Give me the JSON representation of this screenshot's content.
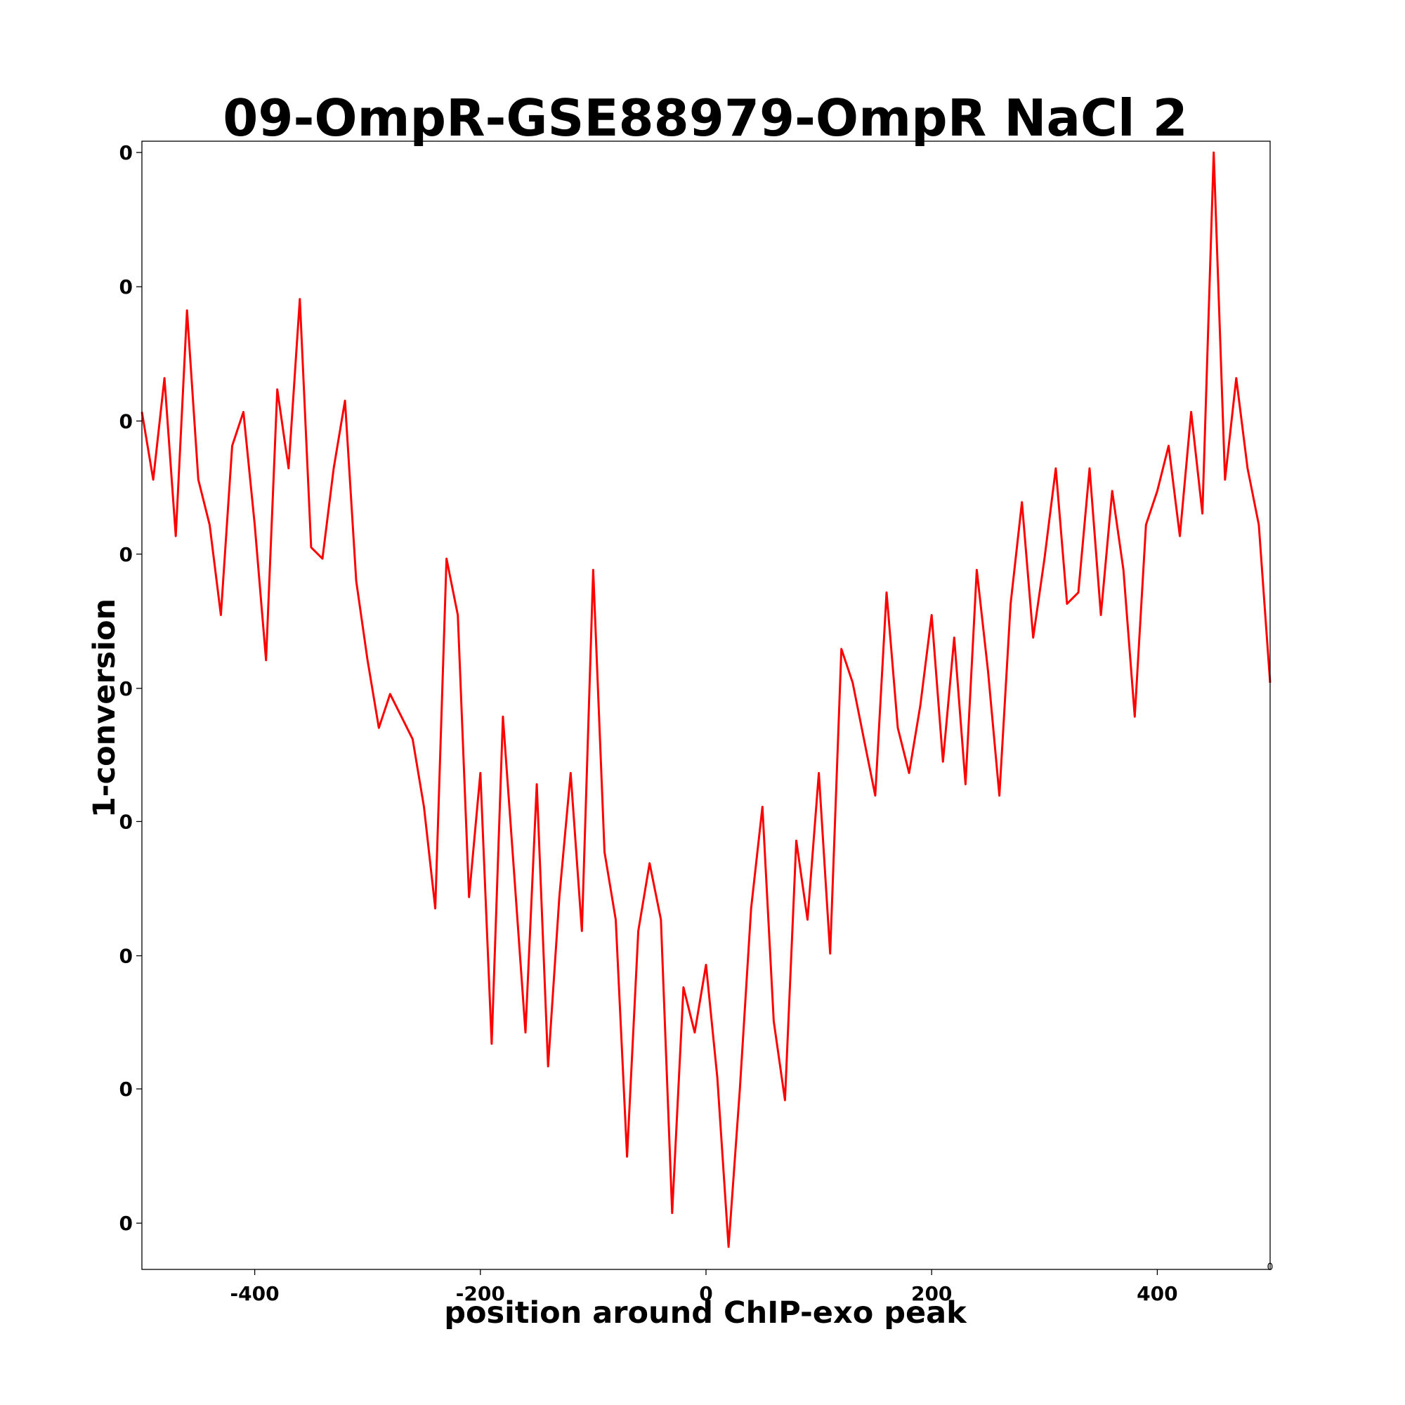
{
  "chart_data": {
    "type": "line",
    "title": "09-OmpR-GSE88979-OmpR NaCl 2",
    "xlabel": "position around ChIP-exo peak",
    "ylabel": "1-conversion",
    "xlim": [
      -500,
      500
    ],
    "ylim": [
      0.0,
      1.0
    ],
    "x_ticks": [
      {
        "value": -400,
        "label": "-400"
      },
      {
        "value": -200,
        "label": "-200"
      },
      {
        "value": 0,
        "label": "0"
      },
      {
        "value": 200,
        "label": "200"
      },
      {
        "value": 400,
        "label": "400"
      }
    ],
    "y_ticks": [
      {
        "value": 0.99,
        "label": "0"
      },
      {
        "value": 0.871,
        "label": "0"
      },
      {
        "value": 0.752,
        "label": "0"
      },
      {
        "value": 0.634,
        "label": "0"
      },
      {
        "value": 0.515,
        "label": "0"
      },
      {
        "value": 0.397,
        "label": "0"
      },
      {
        "value": 0.278,
        "label": "0"
      },
      {
        "value": 0.16,
        "label": "0"
      },
      {
        "value": 0.041,
        "label": "0"
      }
    ],
    "offset_text": "0",
    "grid": false,
    "legend": "none",
    "series": [
      {
        "name": "1-conversion",
        "color": "#ff0000",
        "x": [
          -500,
          -490,
          -480,
          -470,
          -460,
          -450,
          -440,
          -430,
          -420,
          -410,
          -400,
          -390,
          -380,
          -370,
          -360,
          -350,
          -340,
          -330,
          -320,
          -310,
          -300,
          -290,
          -280,
          -270,
          -260,
          -250,
          -240,
          -230,
          -220,
          -210,
          -200,
          -190,
          -180,
          -170,
          -160,
          -150,
          -140,
          -130,
          -120,
          -110,
          -100,
          -90,
          -80,
          -70,
          -60,
          -50,
          -40,
          -30,
          -20,
          -10,
          0,
          10,
          20,
          30,
          40,
          50,
          60,
          70,
          80,
          90,
          100,
          110,
          120,
          130,
          140,
          150,
          160,
          170,
          180,
          190,
          200,
          210,
          220,
          230,
          240,
          250,
          260,
          270,
          280,
          290,
          300,
          310,
          320,
          330,
          340,
          350,
          360,
          370,
          380,
          390,
          400,
          410,
          420,
          430,
          440,
          450,
          460,
          470,
          480,
          490,
          500
        ],
        "values": [
          0.76,
          0.7,
          0.79,
          0.65,
          0.85,
          0.7,
          0.66,
          0.58,
          0.73,
          0.76,
          0.66,
          0.54,
          0.78,
          0.71,
          0.86,
          0.64,
          0.63,
          0.71,
          0.77,
          0.61,
          0.54,
          0.48,
          0.51,
          0.49,
          0.47,
          0.41,
          0.32,
          0.63,
          0.58,
          0.33,
          0.44,
          0.2,
          0.49,
          0.35,
          0.21,
          0.43,
          0.18,
          0.33,
          0.44,
          0.3,
          0.62,
          0.37,
          0.31,
          0.1,
          0.3,
          0.36,
          0.31,
          0.05,
          0.25,
          0.21,
          0.27,
          0.17,
          0.02,
          0.16,
          0.32,
          0.41,
          0.22,
          0.15,
          0.38,
          0.31,
          0.44,
          0.28,
          0.55,
          0.52,
          0.47,
          0.42,
          0.6,
          0.48,
          0.44,
          0.5,
          0.58,
          0.45,
          0.56,
          0.43,
          0.62,
          0.53,
          0.42,
          0.59,
          0.68,
          0.56,
          0.63,
          0.71,
          0.59,
          0.6,
          0.71,
          0.58,
          0.69,
          0.62,
          0.49,
          0.66,
          0.69,
          0.73,
          0.65,
          0.76,
          0.67,
          0.99,
          0.7,
          0.79,
          0.71,
          0.66,
          0.52
        ]
      }
    ]
  }
}
